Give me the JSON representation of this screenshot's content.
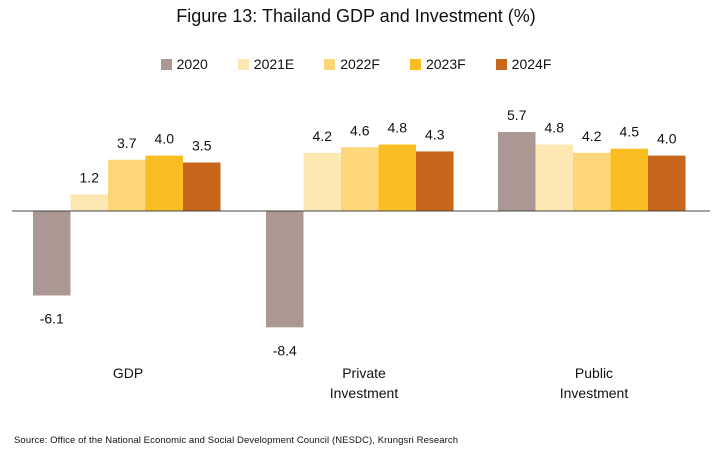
{
  "chart_data": {
    "type": "bar",
    "title": "Figure 13: Thailand GDP and Investment (%)",
    "categories": [
      [
        "GDP"
      ],
      [
        "Private",
        "Investment"
      ],
      [
        "Public",
        "Investment"
      ]
    ],
    "series": [
      {
        "name": "2020",
        "color": "#ab9893",
        "values": [
          -6.1,
          -8.4,
          5.7
        ]
      },
      {
        "name": "2021E",
        "color": "#fde8b4",
        "values": [
          1.2,
          4.2,
          4.8
        ]
      },
      {
        "name": "2022F",
        "color": "#fdd67a",
        "values": [
          3.7,
          4.6,
          4.2
        ]
      },
      {
        "name": "2023F",
        "color": "#fbbe22",
        "values": [
          4.0,
          4.8,
          4.5
        ]
      },
      {
        "name": "2024F",
        "color": "#c8661c",
        "values": [
          3.5,
          4.3,
          4.0
        ]
      }
    ],
    "data_labels": [
      [
        "-6.1",
        "1.2",
        "3.7",
        "4.0",
        "3.5"
      ],
      [
        "-8.4",
        "4.2",
        "4.6",
        "4.8",
        "4.3"
      ],
      [
        "5.7",
        "4.8",
        "4.2",
        "4.5",
        "4.0"
      ]
    ],
    "legend_position": "top",
    "grid": false,
    "xlabel": "",
    "ylabel": ""
  },
  "source": "Source: Office of the National Economic and Social Development Council (NESDC), Krungsri Research"
}
